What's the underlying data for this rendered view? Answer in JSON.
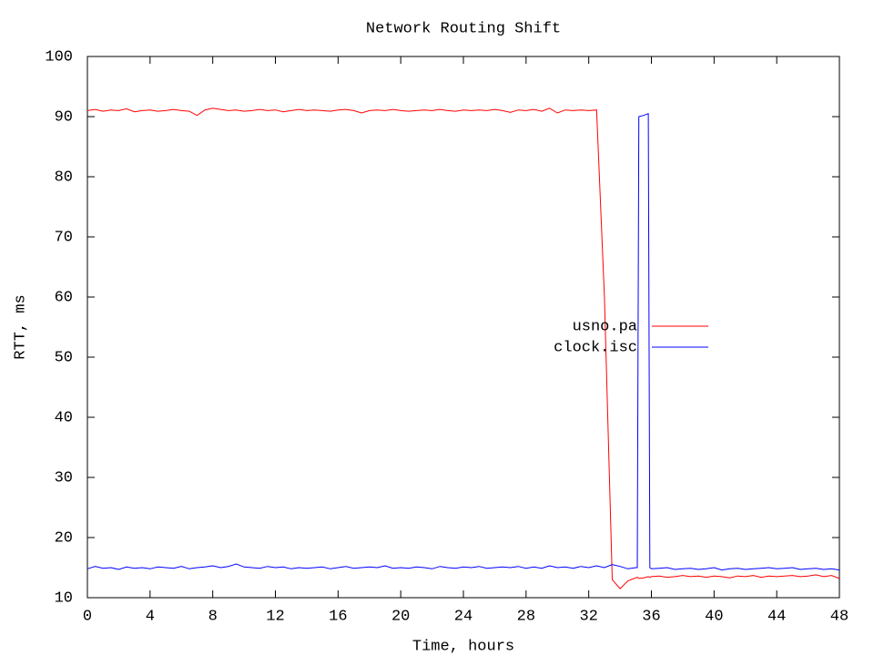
{
  "chart_data": {
    "type": "line",
    "title": "Network Routing Shift",
    "x_label": "Time, hours",
    "y_label": "RTT, ms",
    "x": [
      0,
      0.5,
      1,
      1.5,
      2,
      2.5,
      3,
      3.5,
      4,
      4.5,
      5,
      5.5,
      6,
      6.5,
      7,
      7.5,
      8,
      8.5,
      9,
      9.5,
      10,
      10.5,
      11,
      11.5,
      12,
      12.5,
      13,
      13.5,
      14,
      14.5,
      15,
      15.5,
      16,
      16.5,
      17,
      17.5,
      18,
      18.5,
      19,
      19.5,
      20,
      20.5,
      21,
      21.5,
      22,
      22.5,
      23,
      23.5,
      24,
      24.5,
      25,
      25.5,
      26,
      26.5,
      27,
      27.5,
      28,
      28.5,
      29,
      29.5,
      30,
      30.5,
      31,
      31.5,
      32,
      32.5,
      33,
      33.5,
      34,
      34.5,
      35,
      35.1,
      35.2,
      35.5,
      35.8,
      35.9,
      36,
      36.5,
      37,
      37.5,
      38,
      38.5,
      39,
      39.5,
      40,
      40.5,
      41,
      41.5,
      42,
      42.5,
      43,
      43.5,
      44,
      44.5,
      45,
      45.5,
      46,
      46.5,
      47,
      47.5,
      48
    ],
    "series": [
      {
        "name": "usno.pa",
        "color": "#ff0000",
        "values": [
          91,
          91.2,
          90.9,
          91.1,
          91,
          91.3,
          90.8,
          91,
          91.1,
          90.9,
          91,
          91.2,
          91,
          90.9,
          90.2,
          91.1,
          91.4,
          91.2,
          91,
          91.1,
          90.9,
          91,
          91.2,
          91,
          91.1,
          90.8,
          91,
          91.2,
          91,
          91.1,
          91,
          90.9,
          91.1,
          91.2,
          91,
          90.6,
          91,
          91.1,
          91,
          91.2,
          91,
          90.9,
          91,
          91.1,
          91,
          91.2,
          91,
          90.9,
          91.1,
          91,
          91.1,
          91,
          91.2,
          91,
          90.7,
          91.1,
          91,
          91.2,
          90.9,
          91.4,
          90.6,
          91.1,
          91,
          91.1,
          91,
          91.1,
          60,
          13,
          11.5,
          12.8,
          13.3,
          13.4,
          13.2,
          13.3,
          13.5,
          13.4,
          13.5,
          13.6,
          13.4,
          13.5,
          13.7,
          13.5,
          13.6,
          13.4,
          13.6,
          13.5,
          13.3,
          13.6,
          13.5,
          13.7,
          13.4,
          13.6,
          13.5,
          13.6,
          13.7,
          13.5,
          13.6,
          13.8,
          13.5,
          13.7,
          13.2
        ]
      },
      {
        "name": "clock.isc",
        "color": "#0000ff",
        "values": [
          14.8,
          15.2,
          14.9,
          15,
          14.7,
          15.1,
          14.9,
          15,
          14.8,
          15.1,
          15,
          14.9,
          15.2,
          14.8,
          15,
          15.1,
          15.3,
          15,
          15.2,
          15.6,
          15.1,
          15,
          14.9,
          15.2,
          15,
          15.1,
          14.8,
          15,
          14.9,
          15,
          15.1,
          14.8,
          15,
          15.2,
          14.9,
          15,
          15.1,
          15,
          15.3,
          14.9,
          15,
          14.9,
          15.1,
          15,
          14.8,
          15.2,
          15,
          14.9,
          15.1,
          15,
          15.2,
          14.9,
          15,
          15.1,
          15,
          15.2,
          14.9,
          15.1,
          14.9,
          15.3,
          15,
          15.1,
          14.9,
          15.2,
          15,
          15.3,
          15,
          15.5,
          15.2,
          14.8,
          15,
          15,
          90,
          90.2,
          90.5,
          15,
          14.8,
          14.9,
          15,
          14.7,
          14.8,
          14.9,
          14.7,
          14.8,
          15,
          14.6,
          14.8,
          14.9,
          14.7,
          14.8,
          14.9,
          15,
          14.8,
          14.9,
          15,
          14.7,
          14.8,
          14.9,
          14.7,
          14.8,
          14.6
        ]
      }
    ],
    "xlim": [
      0,
      48
    ],
    "xticks": [
      0,
      4,
      8,
      12,
      16,
      20,
      24,
      28,
      32,
      36,
      40,
      44,
      48
    ],
    "ylim": [
      10,
      100
    ],
    "yticks": [
      10,
      20,
      30,
      40,
      50,
      60,
      70,
      80,
      90,
      100
    ]
  }
}
